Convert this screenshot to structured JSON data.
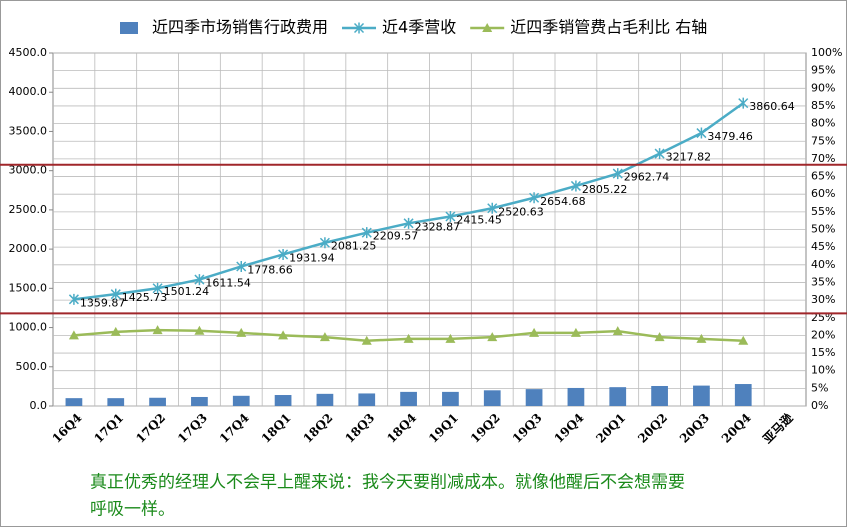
{
  "chart_data": {
    "type": "combo",
    "categories": [
      "16Q4",
      "17Q1",
      "17Q2",
      "17Q3",
      "17Q4",
      "18Q1",
      "18Q2",
      "18Q3",
      "18Q4",
      "19Q1",
      "19Q2",
      "19Q3",
      "19Q4",
      "20Q1",
      "20Q2",
      "20Q3",
      "20Q4",
      "亚马逊"
    ],
    "series": [
      {
        "name": "近四季市场销售行政费用",
        "type": "bar",
        "color": "#4f81bd",
        "values": [
          100,
          100,
          105,
          115,
          130,
          140,
          155,
          160,
          180,
          180,
          200,
          215,
          230,
          240,
          255,
          260,
          280,
          null
        ]
      },
      {
        "name": "近4季营收",
        "type": "line",
        "marker": "star",
        "color": "#4bacc6",
        "data_labels": true,
        "values": [
          1359.87,
          1425.73,
          1501.24,
          1611.54,
          1778.66,
          1931.94,
          2081.25,
          2209.57,
          2328.87,
          2415.45,
          2520.63,
          2654.68,
          2805.22,
          2962.74,
          3217.82,
          3479.46,
          3860.64,
          null
        ]
      },
      {
        "name": "近四季销管费占毛利比 右轴",
        "type": "line",
        "marker": "triangle",
        "color": "#9bbb59",
        "axis": "y2",
        "values": [
          20,
          21,
          21.5,
          21.3,
          20.7,
          20,
          19.5,
          18.5,
          19,
          19,
          19.5,
          20.7,
          20.7,
          21.2,
          19.5,
          19,
          18.5,
          null
        ]
      }
    ],
    "ylim": [
      0,
      4500
    ],
    "yticks": [
      {
        "value": 0,
        "label": "0.0"
      },
      {
        "value": 500,
        "label": "500.0"
      },
      {
        "value": 1000,
        "label": "1000.0"
      },
      {
        "value": 1500,
        "label": "1500.0"
      },
      {
        "value": 2000,
        "label": "2000.0"
      },
      {
        "value": 2500,
        "label": "2500.0"
      },
      {
        "value": 3000,
        "label": "3000.0"
      },
      {
        "value": 3500,
        "label": "3500.0"
      },
      {
        "value": 4000,
        "label": "4000.0"
      },
      {
        "value": 4500,
        "label": "4500.0"
      }
    ],
    "y2lim": [
      0,
      100
    ],
    "y2ticks": [
      {
        "value": 0,
        "label": "0%"
      },
      {
        "value": 5,
        "label": "5%"
      },
      {
        "value": 10,
        "label": "10%"
      },
      {
        "value": 15,
        "label": "15%"
      },
      {
        "value": 20,
        "label": "20%"
      },
      {
        "value": 25,
        "label": "25%"
      },
      {
        "value": 30,
        "label": "30%"
      },
      {
        "value": 35,
        "label": "35%"
      },
      {
        "value": 40,
        "label": "40%"
      },
      {
        "value": 45,
        "label": "45%"
      },
      {
        "value": 50,
        "label": "50%"
      },
      {
        "value": 55,
        "label": "55%"
      },
      {
        "value": 60,
        "label": "60%"
      },
      {
        "value": 65,
        "label": "65%"
      },
      {
        "value": 70,
        "label": "70%"
      },
      {
        "value": 75,
        "label": "75%"
      },
      {
        "value": 80,
        "label": "80%"
      },
      {
        "value": 85,
        "label": "85%"
      },
      {
        "value": 90,
        "label": "90%"
      },
      {
        "value": 95,
        "label": "95%"
      },
      {
        "value": 100,
        "label": "100%"
      }
    ],
    "grid": true,
    "reference_lines": [
      {
        "value": 3075,
        "color": "#a0262a"
      },
      {
        "value": 1180,
        "color": "#a0262a"
      }
    ],
    "legend": "top",
    "footnote": [
      "真正优秀的经理人不会早上醒来说：我今天要削减成本。就像他醒后不会想需要",
      "呼吸一样。"
    ]
  }
}
